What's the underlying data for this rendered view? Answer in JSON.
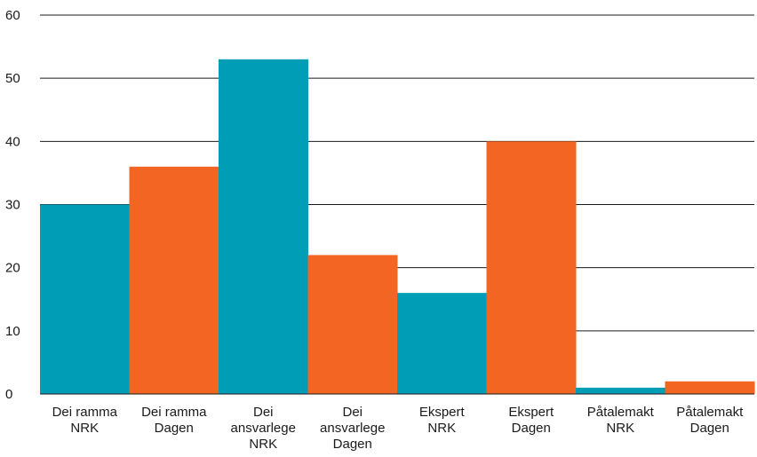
{
  "chart_data": {
    "type": "bar",
    "title": "",
    "xlabel": "",
    "ylabel": "",
    "ylim": [
      0,
      60
    ],
    "yticks": [
      0,
      10,
      20,
      30,
      40,
      50,
      60
    ],
    "grid": true,
    "legend": "none",
    "bars": [
      {
        "label": [
          "Dei ramma",
          "NRK"
        ],
        "value": 30,
        "color": "#009db7"
      },
      {
        "label": [
          "Dei ramma",
          "Dagen"
        ],
        "value": 36,
        "color": "#f26522"
      },
      {
        "label": [
          "Dei",
          "ansvarlege",
          "NRK"
        ],
        "value": 53,
        "color": "#009db7"
      },
      {
        "label": [
          "Dei",
          "ansvarlege",
          "Dagen"
        ],
        "value": 22,
        "color": "#f26522"
      },
      {
        "label": [
          "Ekspert",
          "NRK"
        ],
        "value": 16,
        "color": "#009db7"
      },
      {
        "label": [
          "Ekspert",
          "Dagen"
        ],
        "value": 40,
        "color": "#f26522"
      },
      {
        "label": [
          "Påtalemakt",
          "NRK"
        ],
        "value": 1,
        "color": "#009db7"
      },
      {
        "label": [
          "Påtalemakt",
          "Dagen"
        ],
        "value": 2,
        "color": "#f26522"
      }
    ]
  }
}
